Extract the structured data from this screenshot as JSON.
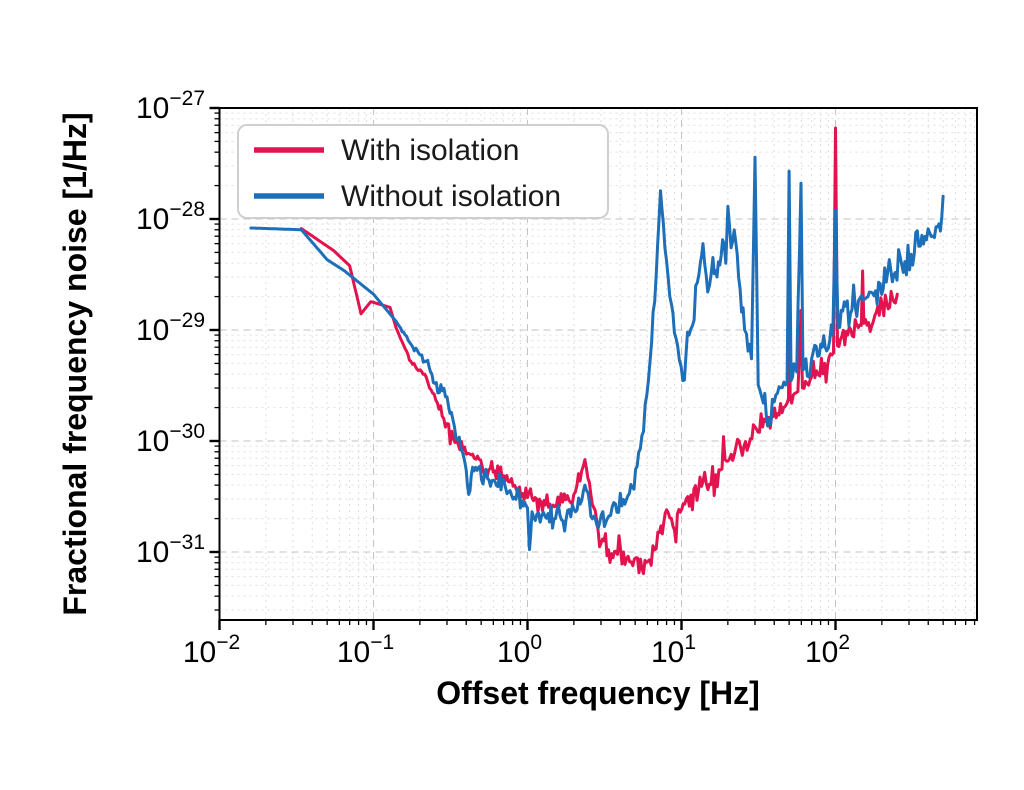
{
  "figure": {
    "background_color": "#ffffff",
    "frame_color": "#000000"
  },
  "axes": {
    "x_title": "Offset frequency [Hz]",
    "y_title": "Fractional frequency noise [1/Hz]",
    "x_tick_exponents": [
      -2,
      -1,
      0,
      1,
      2
    ],
    "y_tick_exponents": [
      -27,
      -28,
      -29,
      -30,
      -31
    ],
    "tick_base": "10",
    "grid_major_color": "#c3c3c3",
    "grid_minor_color": "#dedede"
  },
  "legend": {
    "position": "upper left",
    "items": [
      {
        "label": "With isolation",
        "color": "#e2134e"
      },
      {
        "label": "Without isolation",
        "color": "#1c6fb8"
      }
    ]
  },
  "chart_data": {
    "type": "line",
    "title": "",
    "xlabel": "Offset frequency [Hz]",
    "ylabel": "Fractional frequency noise [1/Hz]",
    "xscale": "log",
    "yscale": "log",
    "xlim": [
      0.01,
      830
    ],
    "ylim": [
      2.4e-32,
      1e-27
    ],
    "grid": "major+minor, dashed",
    "legend_position": "upper left",
    "point_schema": [
      "frequency_hz",
      "noise_1_per_hz",
      "local_scatter_log10_decades"
    ],
    "series": [
      {
        "name": "With isolation",
        "color": "#e2134e",
        "points": [
          [
            0.034,
            8.2e-29,
            0
          ],
          [
            0.055,
            5.2e-29,
            0
          ],
          [
            0.07,
            3.8e-29,
            0
          ],
          [
            0.083,
            1.4e-29,
            0
          ],
          [
            0.096,
            1.8e-29,
            0
          ],
          [
            0.128,
            1.6e-29,
            0
          ],
          [
            0.14,
            1.05e-29,
            0
          ],
          [
            0.175,
            5.2e-30,
            0.02
          ],
          [
            0.21,
            4e-30,
            0.03
          ],
          [
            0.26,
            2.2e-30,
            0.04
          ],
          [
            0.33,
            1.05e-30,
            0.05
          ],
          [
            0.43,
            7.5e-31,
            0.06
          ],
          [
            0.56,
            5.5e-31,
            0.07
          ],
          [
            0.75,
            4.3e-31,
            0.07
          ],
          [
            1.0,
            3.1e-31,
            0.08
          ],
          [
            1.4,
            2.7e-31,
            0.08
          ],
          [
            1.95,
            2.7e-31,
            0.08
          ],
          [
            2.36,
            6.8e-31,
            0.03
          ],
          [
            2.7,
            2.5e-31,
            0.07
          ],
          [
            3.0,
            1.2e-31,
            0.09
          ],
          [
            4.2,
            1e-31,
            0.11
          ],
          [
            5.3,
            6.5e-32,
            0.12
          ],
          [
            6.2,
            8.5e-32,
            0.11
          ],
          [
            7.2,
            1.5e-31,
            0.09
          ],
          [
            8.0,
            2.4e-31,
            0.05
          ],
          [
            8.8,
            1.7e-31,
            0.09
          ],
          [
            10.5,
            2.7e-31,
            0.1
          ],
          [
            13.5,
            3.9e-31,
            0.1
          ],
          [
            17.5,
            5.5e-31,
            0.1
          ],
          [
            22,
            7.5e-31,
            0.1
          ],
          [
            28,
            1.05e-30,
            0.1
          ],
          [
            36,
            1.5e-30,
            0.1
          ],
          [
            46,
            2e-30,
            0.08
          ],
          [
            49.5,
            2.4e-30,
            0.05
          ],
          [
            50,
            4e-29,
            0
          ],
          [
            50.8,
            2.4e-30,
            0.05
          ],
          [
            57,
            2.8e-30,
            0.07
          ],
          [
            59.7,
            1.5e-29,
            0
          ],
          [
            61,
            3e-30,
            0.08
          ],
          [
            70,
            3.8e-30,
            0.1
          ],
          [
            85,
            5e-30,
            0.1
          ],
          [
            97,
            6.2e-30,
            0.06
          ],
          [
            100,
            6.6e-28,
            0
          ],
          [
            103,
            7.2e-30,
            0.07
          ],
          [
            120,
            9e-30,
            0.1
          ],
          [
            147,
            1.1e-29,
            0.07
          ],
          [
            150,
            3.4e-29,
            0
          ],
          [
            153,
            1.15e-29,
            0.08
          ],
          [
            180,
            1.35e-29,
            0.1
          ],
          [
            220,
            1.55e-29,
            0.1
          ],
          [
            245,
            1.75e-29,
            0.06
          ],
          [
            252,
            2.1e-29,
            0
          ]
        ]
      },
      {
        "name": "Without isolation",
        "color": "#1c6fb8",
        "points": [
          [
            0.016,
            8.3e-29,
            0
          ],
          [
            0.034,
            8e-29,
            0
          ],
          [
            0.05,
            4.3e-29,
            0
          ],
          [
            0.065,
            3.4e-29,
            0
          ],
          [
            0.1,
            2.1e-29,
            0
          ],
          [
            0.14,
            1.2e-29,
            0
          ],
          [
            0.18,
            7e-30,
            0.02
          ],
          [
            0.22,
            5.2e-30,
            0.03
          ],
          [
            0.25,
            3.3e-30,
            0.04
          ],
          [
            0.3,
            2.5e-30,
            0.04
          ],
          [
            0.335,
            1.35e-30,
            0.05
          ],
          [
            0.37,
            8.5e-31,
            0.05
          ],
          [
            0.4,
            5.5e-31,
            0.05
          ],
          [
            0.415,
            3.3e-31,
            0.03
          ],
          [
            0.44,
            5.8e-31,
            0.06
          ],
          [
            0.55,
            4.6e-31,
            0.08
          ],
          [
            0.72,
            3.8e-31,
            0.08
          ],
          [
            0.92,
            2.9e-31,
            0.08
          ],
          [
            1.0,
            2.5e-31,
            0.04
          ],
          [
            1.03,
            1.05e-31,
            0
          ],
          [
            1.07,
            2.3e-31,
            0.05
          ],
          [
            1.3,
            2.1e-31,
            0.09
          ],
          [
            1.7,
            1.9e-31,
            0.09
          ],
          [
            2.05,
            2.3e-31,
            0.08
          ],
          [
            2.36,
            4e-31,
            0.04
          ],
          [
            2.7,
            2.1e-31,
            0.08
          ],
          [
            3.3,
            2e-31,
            0.1
          ],
          [
            4.1,
            2.6e-31,
            0.1
          ],
          [
            4.8,
            3.8e-31,
            0.08
          ],
          [
            5.4,
            8.5e-31,
            0.07
          ],
          [
            6.1,
            3.5e-30,
            0.06
          ],
          [
            6.7,
            1.8e-29,
            0.05
          ],
          [
            7.3,
            1.8e-28,
            0
          ],
          [
            7.8,
            5.5e-29,
            0.05
          ],
          [
            8.4,
            2e-29,
            0.06
          ],
          [
            9.2,
            8.5e-30,
            0.08
          ],
          [
            10.2,
            3.5e-30,
            0.1
          ],
          [
            11.2,
            9e-30,
            0.12
          ],
          [
            13.0,
            3.2e-29,
            0.1
          ],
          [
            13.8,
            6e-29,
            0.05
          ],
          [
            14.8,
            2.2e-29,
            0.1
          ],
          [
            16.0,
            4.5e-29,
            0.1
          ],
          [
            17.0,
            3e-29,
            0.1
          ],
          [
            18.5,
            6.5e-29,
            0.08
          ],
          [
            19.4,
            4e-29,
            0.08
          ],
          [
            20.0,
            1.3e-28,
            0
          ],
          [
            21.0,
            5.5e-29,
            0.08
          ],
          [
            22.0,
            8e-29,
            0.05
          ],
          [
            23.5,
            3e-29,
            0.1
          ],
          [
            25.7,
            1e-29,
            0.1
          ],
          [
            28.5,
            5.5e-30,
            0.1
          ],
          [
            30.0,
            3.6e-28,
            0
          ],
          [
            31.5,
            3.2e-30,
            0.1
          ],
          [
            34,
            2.2e-30,
            0.1
          ],
          [
            37,
            1.6e-30,
            0.08
          ],
          [
            41,
            2.6e-30,
            0.09
          ],
          [
            48.5,
            3.4e-30,
            0.08
          ],
          [
            50,
            2.7e-28,
            0
          ],
          [
            51.5,
            3.5e-30,
            0.09
          ],
          [
            56,
            4.2e-30,
            0.1
          ],
          [
            59.7,
            2.1e-28,
            0
          ],
          [
            61.5,
            4.4e-30,
            0.1
          ],
          [
            70,
            5.5e-30,
            0.12
          ],
          [
            82,
            7e-30,
            0.12
          ],
          [
            96,
            9e-30,
            0.08
          ],
          [
            100,
            1.2e-28,
            0
          ],
          [
            104,
            1.05e-29,
            0.1
          ],
          [
            125,
            1.4e-29,
            0.12
          ],
          [
            155,
            1.9e-29,
            0.12
          ],
          [
            195,
            2.6e-29,
            0.13
          ],
          [
            245,
            3.3e-29,
            0.13
          ],
          [
            310,
            4.8e-29,
            0.13
          ],
          [
            390,
            6.5e-29,
            0.12
          ],
          [
            460,
            8.5e-29,
            0.09
          ],
          [
            490,
            1.05e-28,
            0.04
          ],
          [
            500,
            1.6e-28,
            0
          ]
        ]
      }
    ]
  }
}
